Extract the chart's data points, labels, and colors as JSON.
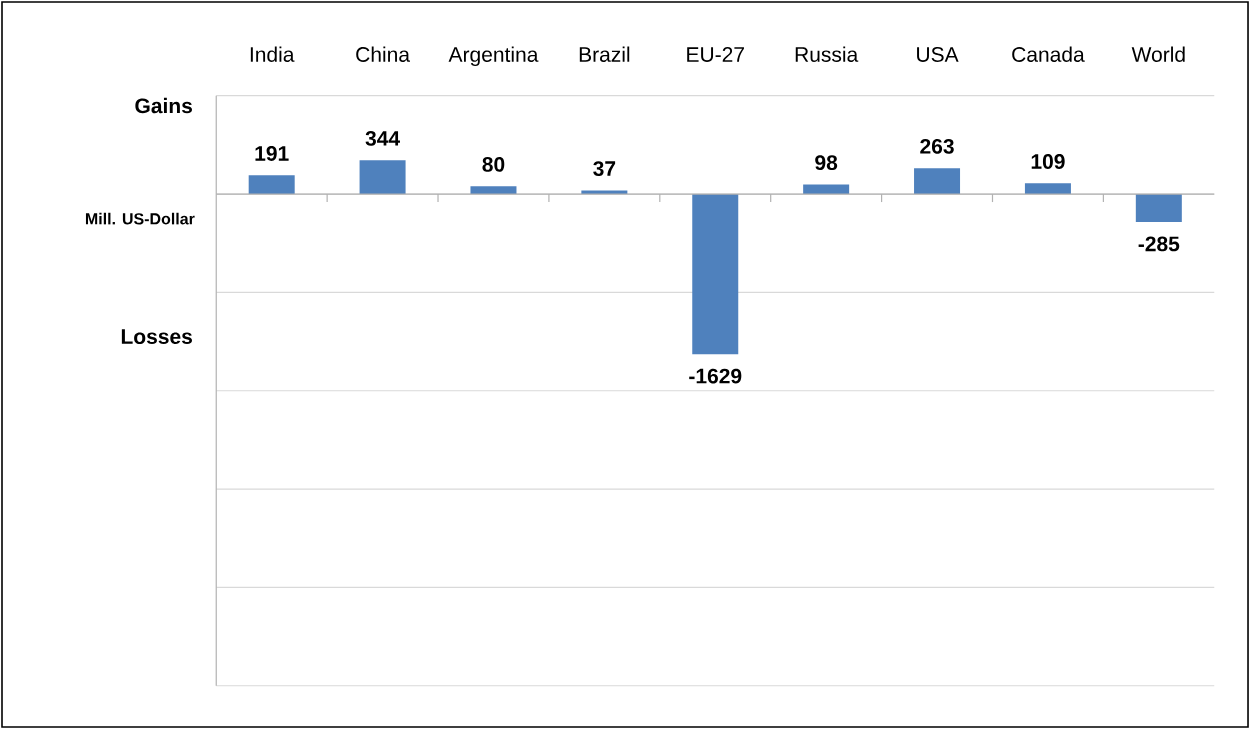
{
  "chart_data": {
    "type": "bar",
    "ylabel": "Mill. US-Dollar",
    "annotations": [
      "Gains",
      "Losses"
    ],
    "categories": [
      "India",
      "China",
      "Argentina",
      "Brazil",
      "EU-27",
      "Russia",
      "USA",
      "Canada",
      "World"
    ],
    "values": [
      191,
      344,
      80,
      37,
      -1629,
      98,
      263,
      109,
      -285
    ],
    "color": "#4f81bd",
    "data_labels": true,
    "grid": "y",
    "tick_labels": "x",
    "ylim": [
      -5000,
      1000
    ],
    "yticks": [
      {
        "value": -5000,
        "label": null
      },
      {
        "value": -4000,
        "label": null
      },
      {
        "value": -3000,
        "label": null
      },
      {
        "value": -2000,
        "label": null
      },
      {
        "value": -1000,
        "label": null
      },
      {
        "value": 0,
        "label": null
      },
      {
        "value": 1000,
        "label": null
      }
    ]
  }
}
